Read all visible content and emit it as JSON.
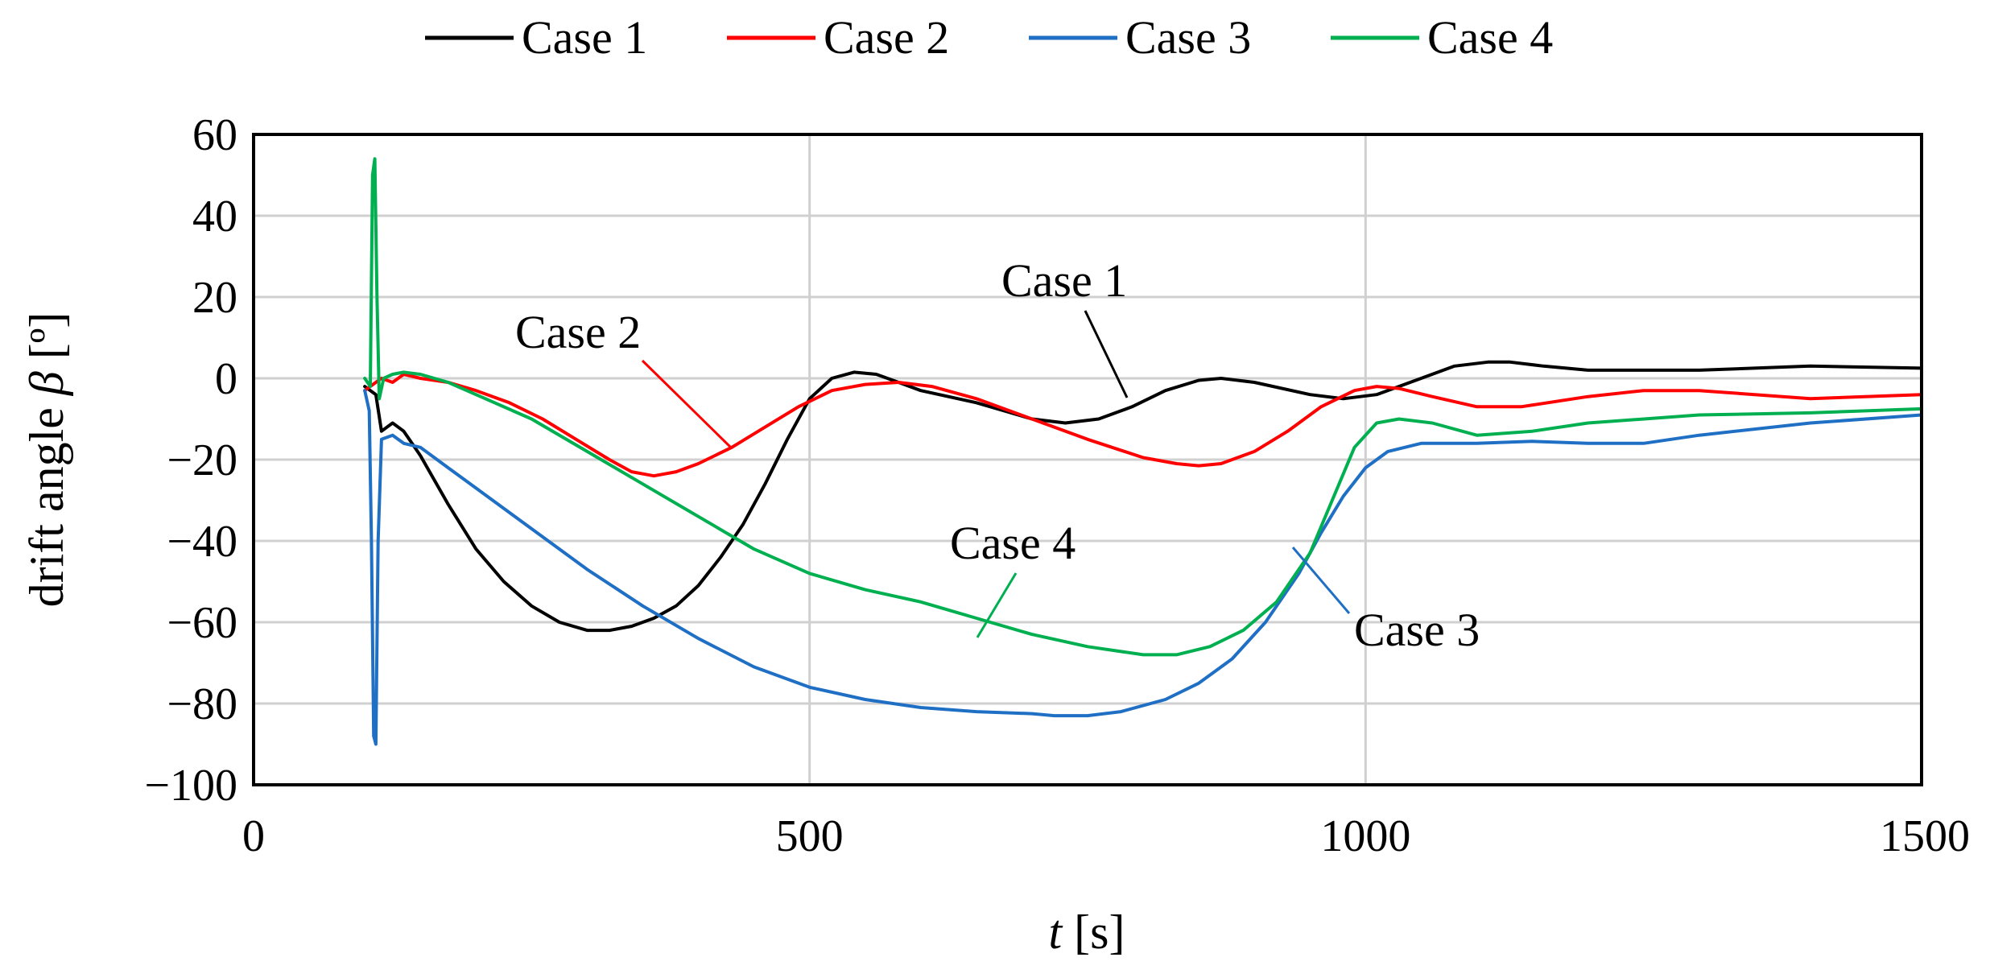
{
  "colors": {
    "case1": "#000000",
    "case2": "#ff0000",
    "case3": "#1f6fc5",
    "case4": "#00b050",
    "grid": "#d0d0d0",
    "frame": "#000000"
  },
  "axes": {
    "xlabel_var": "t",
    "xlabel_unit": " [s]",
    "ylabel_text": "drift angle ",
    "ylabel_var": "β",
    "ylabel_unit": " [º]"
  },
  "chart_data": {
    "type": "line",
    "xlim": [
      0,
      1500
    ],
    "ylim": [
      -100,
      60
    ],
    "xticks": [
      0,
      500,
      1000,
      1500
    ],
    "xtick_labels": [
      "0",
      "500",
      "1000",
      "1500"
    ],
    "yticks": [
      60,
      40,
      20,
      0,
      -20,
      -40,
      -60,
      -80,
      -100
    ],
    "ytick_labels": [
      "60",
      "40",
      "20",
      "0",
      "−20",
      "−40",
      "−60",
      "−80",
      "−100"
    ],
    "grid": true,
    "legend_placement": "top",
    "series": [
      {
        "name": "Case 1",
        "color_key": "case1",
        "points": [
          [
            100,
            -2
          ],
          [
            110,
            -4
          ],
          [
            115,
            -13
          ],
          [
            125,
            -11
          ],
          [
            135,
            -13
          ],
          [
            150,
            -19
          ],
          [
            175,
            -31
          ],
          [
            200,
            -42
          ],
          [
            225,
            -50
          ],
          [
            250,
            -56
          ],
          [
            275,
            -60
          ],
          [
            300,
            -62
          ],
          [
            320,
            -62
          ],
          [
            340,
            -61
          ],
          [
            360,
            -59
          ],
          [
            380,
            -56
          ],
          [
            400,
            -51
          ],
          [
            420,
            -44
          ],
          [
            440,
            -36
          ],
          [
            460,
            -26
          ],
          [
            480,
            -15
          ],
          [
            500,
            -5
          ],
          [
            520,
            0
          ],
          [
            540,
            1.5
          ],
          [
            560,
            1
          ],
          [
            580,
            -1
          ],
          [
            600,
            -3
          ],
          [
            650,
            -6
          ],
          [
            700,
            -10
          ],
          [
            730,
            -11
          ],
          [
            760,
            -10
          ],
          [
            790,
            -7
          ],
          [
            820,
            -3
          ],
          [
            850,
            -0.5
          ],
          [
            870,
            0
          ],
          [
            900,
            -1
          ],
          [
            950,
            -4
          ],
          [
            980,
            -5
          ],
          [
            1010,
            -4
          ],
          [
            1050,
            0
          ],
          [
            1080,
            3
          ],
          [
            1110,
            4
          ],
          [
            1130,
            4
          ],
          [
            1160,
            3
          ],
          [
            1200,
            2
          ],
          [
            1300,
            2
          ],
          [
            1400,
            3
          ],
          [
            1500,
            2.5
          ]
        ]
      },
      {
        "name": "Case 2",
        "color_key": "case2",
        "points": [
          [
            100,
            -3
          ],
          [
            110,
            -1
          ],
          [
            115,
            0
          ],
          [
            125,
            -1
          ],
          [
            135,
            1
          ],
          [
            150,
            0
          ],
          [
            175,
            -1
          ],
          [
            200,
            -3
          ],
          [
            230,
            -6
          ],
          [
            260,
            -10
          ],
          [
            290,
            -15
          ],
          [
            320,
            -20
          ],
          [
            340,
            -23
          ],
          [
            360,
            -24
          ],
          [
            380,
            -23
          ],
          [
            400,
            -21
          ],
          [
            430,
            -17
          ],
          [
            460,
            -12
          ],
          [
            490,
            -7
          ],
          [
            520,
            -3
          ],
          [
            550,
            -1.5
          ],
          [
            580,
            -1
          ],
          [
            610,
            -2
          ],
          [
            650,
            -5
          ],
          [
            700,
            -10
          ],
          [
            750,
            -15
          ],
          [
            800,
            -19.5
          ],
          [
            830,
            -21
          ],
          [
            850,
            -21.5
          ],
          [
            870,
            -21
          ],
          [
            900,
            -18
          ],
          [
            930,
            -13
          ],
          [
            960,
            -7
          ],
          [
            990,
            -3
          ],
          [
            1010,
            -2
          ],
          [
            1030,
            -2.5
          ],
          [
            1060,
            -4.5
          ],
          [
            1100,
            -7
          ],
          [
            1140,
            -7
          ],
          [
            1200,
            -4.5
          ],
          [
            1250,
            -3
          ],
          [
            1300,
            -3
          ],
          [
            1400,
            -5
          ],
          [
            1500,
            -4
          ]
        ]
      },
      {
        "name": "Case 3",
        "color_key": "case3",
        "points": [
          [
            100,
            -3
          ],
          [
            104,
            -8
          ],
          [
            106,
            -40
          ],
          [
            108,
            -88
          ],
          [
            110,
            -90
          ],
          [
            112,
            -40
          ],
          [
            115,
            -15
          ],
          [
            125,
            -14
          ],
          [
            135,
            -16
          ],
          [
            150,
            -17
          ],
          [
            175,
            -22
          ],
          [
            200,
            -27
          ],
          [
            250,
            -37
          ],
          [
            300,
            -47
          ],
          [
            350,
            -56
          ],
          [
            400,
            -64
          ],
          [
            450,
            -71
          ],
          [
            500,
            -76
          ],
          [
            550,
            -79
          ],
          [
            600,
            -81
          ],
          [
            650,
            -82
          ],
          [
            700,
            -82.5
          ],
          [
            720,
            -83
          ],
          [
            750,
            -83
          ],
          [
            780,
            -82
          ],
          [
            820,
            -79
          ],
          [
            850,
            -75
          ],
          [
            880,
            -69
          ],
          [
            910,
            -60
          ],
          [
            940,
            -48
          ],
          [
            960,
            -38
          ],
          [
            980,
            -29
          ],
          [
            1000,
            -22
          ],
          [
            1020,
            -18
          ],
          [
            1050,
            -16
          ],
          [
            1100,
            -16
          ],
          [
            1150,
            -15.5
          ],
          [
            1200,
            -16
          ],
          [
            1250,
            -16
          ],
          [
            1300,
            -14
          ],
          [
            1400,
            -11
          ],
          [
            1500,
            -9
          ]
        ]
      },
      {
        "name": "Case 4",
        "color_key": "case4",
        "points": [
          [
            100,
            0
          ],
          [
            105,
            -2
          ],
          [
            107,
            50
          ],
          [
            109,
            54
          ],
          [
            111,
            20
          ],
          [
            113,
            -5
          ],
          [
            117,
            0
          ],
          [
            125,
            1
          ],
          [
            135,
            1.5
          ],
          [
            150,
            1
          ],
          [
            175,
            -1
          ],
          [
            200,
            -4
          ],
          [
            250,
            -10
          ],
          [
            300,
            -18
          ],
          [
            350,
            -26
          ],
          [
            400,
            -34
          ],
          [
            450,
            -42
          ],
          [
            500,
            -48
          ],
          [
            550,
            -52
          ],
          [
            600,
            -55
          ],
          [
            650,
            -59
          ],
          [
            700,
            -63
          ],
          [
            750,
            -66
          ],
          [
            800,
            -68
          ],
          [
            830,
            -68
          ],
          [
            860,
            -66
          ],
          [
            890,
            -62
          ],
          [
            920,
            -55
          ],
          [
            950,
            -43
          ],
          [
            970,
            -30
          ],
          [
            990,
            -17
          ],
          [
            1010,
            -11
          ],
          [
            1030,
            -10
          ],
          [
            1060,
            -11
          ],
          [
            1100,
            -14
          ],
          [
            1150,
            -13
          ],
          [
            1200,
            -11
          ],
          [
            1300,
            -9
          ],
          [
            1400,
            -8.5
          ],
          [
            1500,
            -7.5
          ]
        ]
      }
    ],
    "legend": [
      "Case 1",
      "Case 2",
      "Case 3",
      "Case 4"
    ],
    "annotations": [
      {
        "text": "Case 1",
        "color_key": "case1"
      },
      {
        "text": "Case 2",
        "color_key": "case2"
      },
      {
        "text": "Case 3",
        "color_key": "case3"
      },
      {
        "text": "Case 4",
        "color_key": "case4"
      }
    ]
  }
}
